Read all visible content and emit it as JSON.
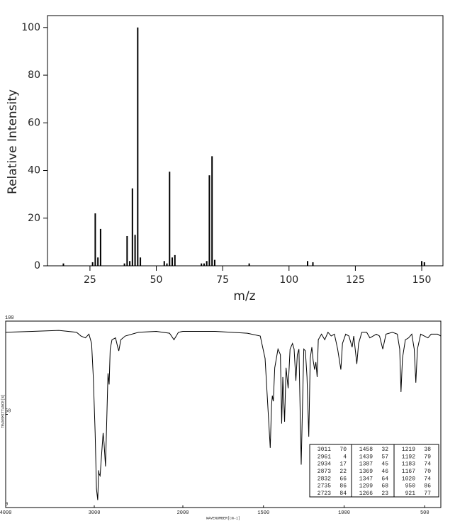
{
  "chart_data": [
    {
      "type": "bar",
      "xlabel": "m/z",
      "ylabel": "Relative Intensity",
      "x": [
        15,
        26,
        27,
        28,
        29,
        38,
        39,
        40,
        41,
        42,
        43,
        44,
        53,
        54,
        55,
        56,
        57,
        67,
        68,
        69,
        70,
        71,
        72,
        85,
        107,
        109,
        150,
        151
      ],
      "values": [
        1,
        1.5,
        22,
        3.5,
        15.5,
        1,
        12.5,
        2,
        32.5,
        13,
        100,
        3.5,
        2,
        1,
        39.5,
        3.5,
        4.5,
        1,
        1,
        2,
        38,
        46,
        2.5,
        1,
        2,
        1.5,
        2,
        1.5
      ],
      "color": "#000000",
      "xlim": [
        9,
        158
      ],
      "xticks": [
        25,
        50,
        75,
        100,
        125,
        150
      ],
      "ylim": [
        0,
        105
      ],
      "yticks": [
        0,
        20,
        40,
        60,
        80,
        100
      ]
    },
    {
      "type": "line",
      "xlabel": "WAVENUMBER[cm-1]",
      "ylabel": "TRANSMITTANCE[%]",
      "x": [
        4000,
        3700,
        3400,
        3200,
        3150,
        3100,
        3060,
        3030,
        3011,
        2990,
        2975,
        2961,
        2950,
        2945,
        2934,
        2915,
        2900,
        2890,
        2873,
        2860,
        2845,
        2832,
        2820,
        2800,
        2760,
        2735,
        2723,
        2700,
        2650,
        2500,
        2300,
        2150,
        2100,
        2050,
        2000,
        1900,
        1800,
        1700,
        1600,
        1520,
        1490,
        1470,
        1458,
        1450,
        1445,
        1439,
        1430,
        1410,
        1395,
        1387,
        1380,
        1369,
        1360,
        1347,
        1335,
        1320,
        1310,
        1299,
        1290,
        1280,
        1266,
        1250,
        1240,
        1230,
        1219,
        1210,
        1200,
        1192,
        1183,
        1175,
        1167,
        1160,
        1140,
        1120,
        1100,
        1080,
        1060,
        1040,
        1020,
        1010,
        990,
        970,
        950,
        940,
        921,
        910,
        890,
        860,
        840,
        800,
        780,
        760,
        740,
        700,
        670,
        655,
        647,
        638,
        620,
        600,
        580,
        565,
        555,
        545,
        525,
        480,
        460,
        420,
        400
      ],
      "values": [
        94,
        94.5,
        95,
        94,
        92,
        91,
        93,
        88,
        70,
        40,
        10,
        4,
        20,
        18,
        17,
        30,
        40,
        35,
        22,
        45,
        72,
        66,
        85,
        90,
        91,
        86,
        84,
        90,
        92,
        94,
        94.5,
        93.5,
        90,
        94,
        94.5,
        94.5,
        94.5,
        94,
        93.5,
        92,
        80,
        50,
        32,
        55,
        60,
        57,
        75,
        85,
        82,
        45,
        70,
        46,
        75,
        64,
        85,
        88,
        85,
        68,
        82,
        85,
        23,
        85,
        84,
        70,
        38,
        80,
        86,
        79,
        74,
        78,
        70,
        90,
        93,
        90,
        94,
        92,
        93,
        85,
        74,
        88,
        93,
        92,
        86,
        92,
        77,
        88,
        94,
        94,
        91,
        93,
        92,
        85,
        93,
        94,
        93,
        85,
        62,
        80,
        90,
        91,
        93,
        85,
        67,
        85,
        93,
        91,
        93,
        93,
        92
      ],
      "color": "#000000",
      "xlim": [
        4000,
        400
      ],
      "xbreak": 2000,
      "xticks": [
        4000,
        3000,
        2000,
        1500,
        1000,
        500
      ],
      "ylim": [
        0,
        100
      ],
      "yticks": [
        0,
        50,
        100
      ],
      "peak_table": [
        [
          [
            3011,
            70
          ],
          [
            2961,
            4
          ],
          [
            2934,
            17
          ],
          [
            2873,
            22
          ],
          [
            2832,
            66
          ],
          [
            2735,
            86
          ],
          [
            2723,
            84
          ]
        ],
        [
          [
            1458,
            32
          ],
          [
            1439,
            57
          ],
          [
            1387,
            45
          ],
          [
            1369,
            46
          ],
          [
            1347,
            64
          ],
          [
            1299,
            68
          ],
          [
            1266,
            23
          ]
        ],
        [
          [
            1219,
            38
          ],
          [
            1192,
            79
          ],
          [
            1183,
            74
          ],
          [
            1167,
            70
          ],
          [
            1020,
            74
          ],
          [
            950,
            86
          ],
          [
            921,
            77
          ]
        ]
      ]
    }
  ]
}
